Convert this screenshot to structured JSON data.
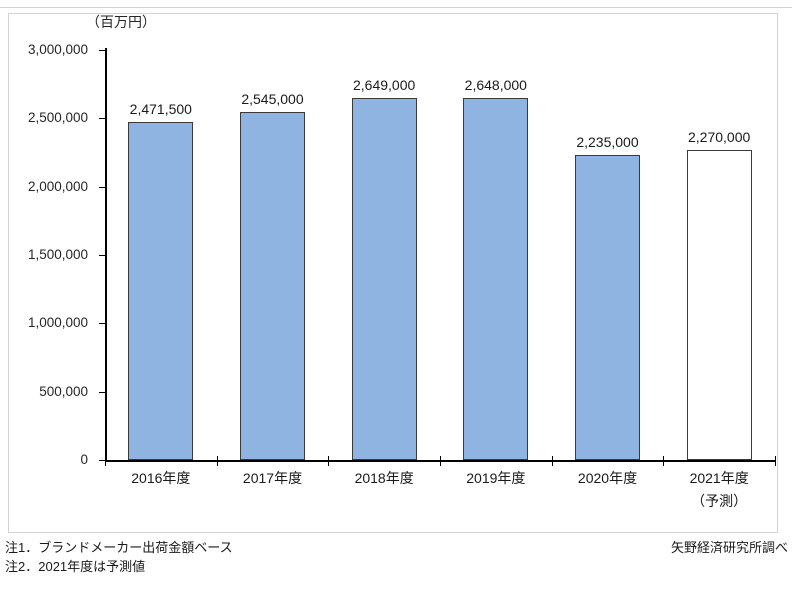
{
  "page": {
    "background_color": "#ffffff",
    "top_divider_color": "#d4d4d4",
    "frame_border_color": "#d3d3d3"
  },
  "chart_data": {
    "type": "bar",
    "title": "",
    "unit_label": "（百万円）",
    "categories": [
      "2016年度",
      "2017年度",
      "2018年度",
      "2019年度",
      "2020年度",
      "2021年度"
    ],
    "category_sublabels": [
      "",
      "",
      "",
      "",
      "",
      "（予測）"
    ],
    "values": [
      2471500,
      2545000,
      2649000,
      2648000,
      2235000,
      2270000
    ],
    "value_labels": [
      "2,471,500",
      "2,545,000",
      "2,649,000",
      "2,648,000",
      "2,235,000",
      "2,270,000"
    ],
    "bar_fill_colors": [
      "#8fb4e2",
      "#8fb4e2",
      "#8fb4e2",
      "#8fb4e2",
      "#8fb4e2",
      "#ffffff"
    ],
    "bar_border_color": "#3a3a3a",
    "xlabel": "",
    "ylabel": "",
    "ylim": [
      0,
      3000000
    ],
    "ytick_interval": 500000,
    "ytick_labels": [
      "0",
      "500,000",
      "1,000,000",
      "1,500,000",
      "2,000,000",
      "2,500,000",
      "3,000,000"
    ],
    "grid": false,
    "legend": false
  },
  "notes": {
    "note1": "注1．ブランドメーカー出荷金額ベース",
    "note2": "注2．2021年度は予測値",
    "source": "矢野経済研究所調べ"
  }
}
